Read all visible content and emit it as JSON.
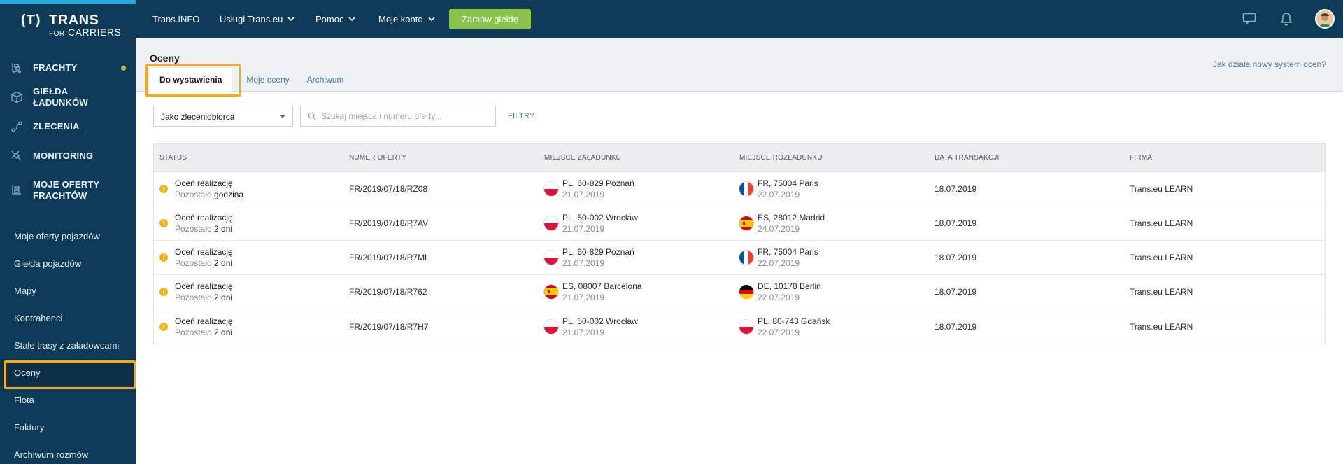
{
  "brand": {
    "mark": "(T)",
    "name": "TRANS",
    "for": "FOR",
    "carriers": "CARRIERS"
  },
  "sidebar": {
    "main": [
      {
        "label": "FRACHTY",
        "icon": "cargo-cart-icon",
        "has_dot": true
      },
      {
        "label": "GIEŁDA ŁADUNKÓW",
        "icon": "box-icon"
      },
      {
        "label": "ZLECENIA",
        "icon": "route-icon"
      },
      {
        "label": "MONITORING",
        "icon": "satellite-icon"
      },
      {
        "label": "MOJE OFERTY FRACHTÓW",
        "icon": "offers-icon"
      }
    ],
    "sub": [
      {
        "label": "Moje oferty pojazdów"
      },
      {
        "label": "Giełda pojazdów"
      },
      {
        "label": "Mapy"
      },
      {
        "label": "Kontrahenci"
      },
      {
        "label": "Stałe trasy z załadowcami"
      },
      {
        "label": "Oceny",
        "active": true
      },
      {
        "label": "Flota"
      },
      {
        "label": "Faktury"
      },
      {
        "label": "Archiwum rozmów"
      }
    ]
  },
  "topbar": {
    "items": [
      {
        "label": "Trans.INFO",
        "dropdown": false
      },
      {
        "label": "Usługi Trans.eu",
        "dropdown": true
      },
      {
        "label": "Pomoc",
        "dropdown": true
      },
      {
        "label": "Moje konto",
        "dropdown": true
      }
    ],
    "order_button": "Zamów giełdę"
  },
  "header": {
    "title": "Oceny",
    "help_link": "Jak działa nowy system ocen?",
    "tabs": [
      "Do wystawienia",
      "Moje oceny",
      "Archiwum"
    ]
  },
  "filters": {
    "role_select": "Jako zleceniobiorca",
    "search_placeholder": "Szukaj miejsca i numeru oferty...",
    "filter_label": "FILTRY"
  },
  "table": {
    "columns": [
      "STATUS",
      "NUMER OFERTY",
      "MIEJSCE ZAŁADUNKU",
      "MIEJSCE ROZŁADUNKU",
      "DATA TRANSAKCJI",
      "FIRMA"
    ],
    "rows": [
      {
        "status": "Oceń realizację",
        "remaining_label": "Pozostało",
        "remaining": "godzina",
        "offer": "FR/2019/07/18/RZ08",
        "load_flag": "pl",
        "load_place": "PL, 60-829 Poznań",
        "load_date": "21.07.2019",
        "unload_flag": "fr",
        "unload_place": "FR, 75004 Paris",
        "unload_date": "22.07.2019",
        "date": "18.07.2019",
        "company": "Trans.eu LEARN"
      },
      {
        "status": "Oceń realizację",
        "remaining_label": "Pozostało",
        "remaining": "2 dni",
        "offer": "FR/2019/07/18/R7AV",
        "load_flag": "pl",
        "load_place": "PL, 50-002 Wrocław",
        "load_date": "21.07.2019",
        "unload_flag": "es",
        "unload_place": "ES, 28012 Madrid",
        "unload_date": "24.07.2019",
        "date": "18.07.2019",
        "company": "Trans.eu LEARN"
      },
      {
        "status": "Oceń realizację",
        "remaining_label": "Pozostało",
        "remaining": "2 dni",
        "offer": "FR/2019/07/18/R7ML",
        "load_flag": "pl",
        "load_place": "PL, 60-829 Poznań",
        "load_date": "21.07.2019",
        "unload_flag": "fr",
        "unload_place": "FR, 75004 Paris",
        "unload_date": "22.07.2019",
        "date": "18.07.2019",
        "company": "Trans.eu LEARN"
      },
      {
        "status": "Oceń realizację",
        "remaining_label": "Pozostało",
        "remaining": "2 dni",
        "offer": "FR/2019/07/18/R762",
        "load_flag": "es",
        "load_place": "ES, 08007 Barcelona",
        "load_date": "21.07.2019",
        "unload_flag": "de",
        "unload_place": "DE, 10178 Berlin",
        "unload_date": "22.07.2019",
        "date": "18.07.2019",
        "company": "Trans.eu LEARN"
      },
      {
        "status": "Oceń realizację",
        "remaining_label": "Pozostało",
        "remaining": "2 dni",
        "offer": "FR/2019/07/18/R7H7",
        "load_flag": "pl",
        "load_place": "PL, 50-002 Wrocław",
        "load_date": "21.07.2019",
        "unload_flag": "pl",
        "unload_place": "PL, 80-743 Gdańsk",
        "unload_date": "22.07.2019",
        "date": "18.07.2019",
        "company": "Trans.eu LEARN"
      }
    ]
  },
  "colors": {
    "sidebar": "#0d3a57",
    "accent_green": "#8bc34a",
    "highlight": "#f0a928",
    "warning": "#f1b51c"
  }
}
